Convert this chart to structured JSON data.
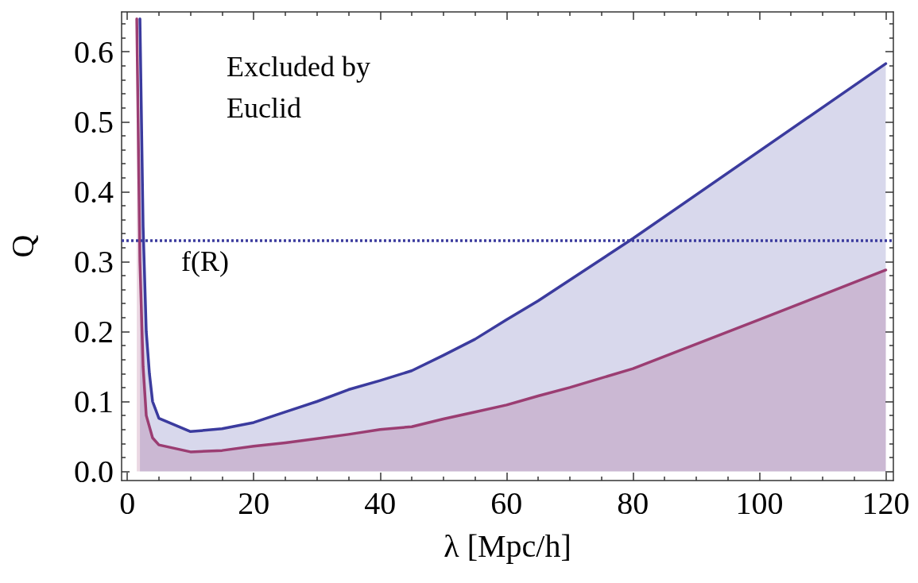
{
  "chart_data": {
    "type": "area",
    "xlabel": "λ [Mpc/h]",
    "ylabel": "Q",
    "annotations": [
      "Excluded by Euclid"
    ],
    "x": [
      2,
      2.5,
      3,
      3.5,
      4,
      5,
      10,
      15,
      20,
      25,
      30,
      35,
      40,
      45,
      50,
      55,
      60,
      65,
      80,
      120
    ],
    "series": [
      {
        "color": "#3b3b9e",
        "values": [
          0.647,
          0.35,
          0.2,
          0.14,
          0.1,
          0.076,
          0.057,
          0.061,
          0.07,
          0.085,
          0.1,
          0.117,
          0.13,
          0.144,
          0.166,
          0.189,
          0.217,
          0.244,
          0.333,
          0.583
        ]
      },
      {
        "color": "#9b3d72",
        "x": [
          1.5,
          2,
          2.5,
          3,
          4,
          5,
          10,
          15,
          20,
          25,
          30,
          35,
          40,
          45,
          50,
          55,
          60,
          65,
          70,
          80,
          100,
          120
        ],
        "values": [
          0.647,
          0.3,
          0.15,
          0.08,
          0.048,
          0.038,
          0.028,
          0.03,
          0.036,
          0.041,
          0.047,
          0.053,
          0.06,
          0.064,
          0.075,
          0.085,
          0.095,
          0.108,
          0.12,
          0.147,
          0.217,
          0.288
        ]
      }
    ],
    "xlim": [
      -0.9,
      121.2
    ],
    "xticks": [
      0,
      20,
      40,
      60,
      80,
      100,
      120
    ],
    "ylim": [
      -0.013,
      0.657
    ],
    "yticks": [
      {
        "value": 0,
        "label": "0.0"
      },
      {
        "value": 0.1,
        "label": "0.1"
      },
      {
        "value": 0.2,
        "label": "0.2"
      },
      {
        "value": 0.3,
        "label": "0.3"
      },
      {
        "value": 0.4,
        "label": "0.4"
      },
      {
        "value": 0.5,
        "label": "0.5"
      },
      {
        "value": 0.6,
        "label": "0.6"
      }
    ],
    "ref_lines": [
      {
        "axis": "y",
        "value": 0.333,
        "label": "f(R)",
        "color": "#3b3b9e",
        "line_style": "dotted"
      }
    ],
    "marker": "none",
    "line_style": "solid"
  }
}
